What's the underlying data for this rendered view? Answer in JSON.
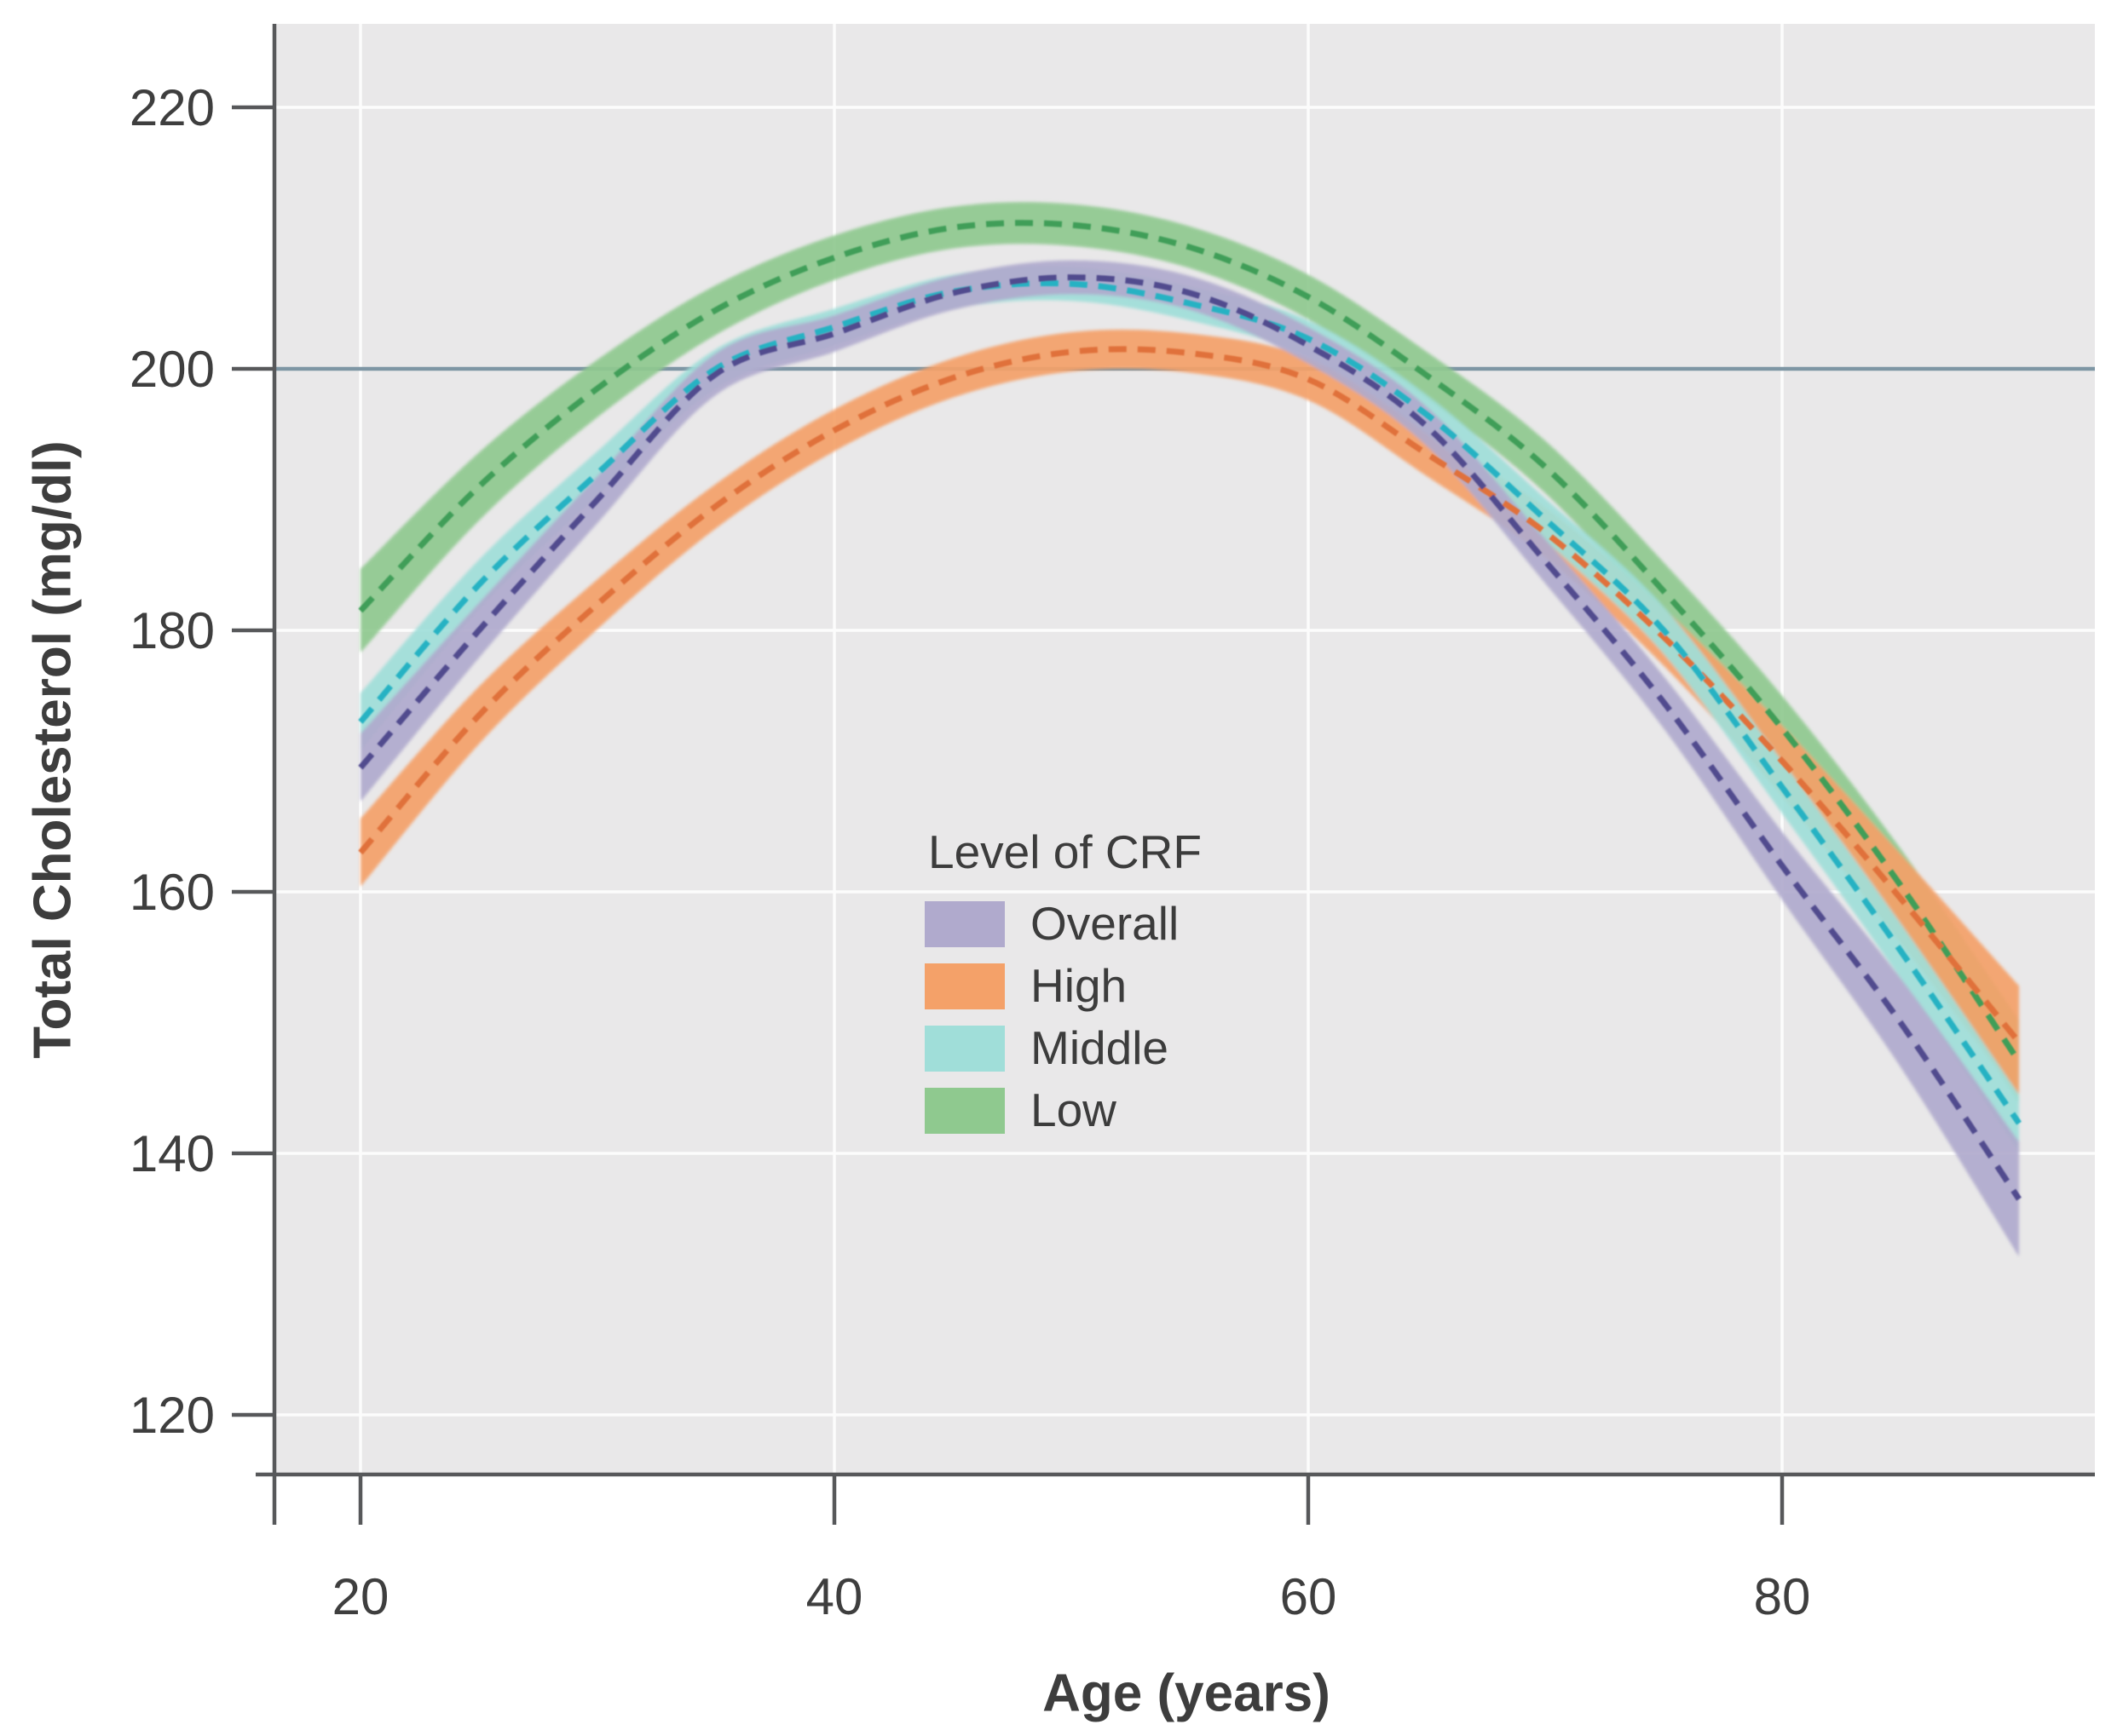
{
  "chart_data": {
    "type": "line",
    "title": "",
    "xlabel": "Age (years)",
    "ylabel": "Total Cholesterol (mg/dl)",
    "x": {
      "min": 20,
      "max": 90,
      "ticks": [
        20,
        40,
        60,
        80
      ]
    },
    "y": {
      "min": 115,
      "max": 226,
      "ticks": [
        120,
        140,
        160,
        180,
        200,
        220
      ]
    },
    "grid": true,
    "legend": {
      "title": "Level of CRF",
      "position": "inside-center-bottom",
      "items": [
        "Overall",
        "High",
        "Middle",
        "Low"
      ]
    },
    "reference_line": {
      "value": 200,
      "color": "#7e96a4"
    },
    "ages": [
      20,
      25,
      30,
      35,
      40,
      45,
      50,
      55,
      60,
      65,
      70,
      75,
      80,
      85,
      90
    ],
    "series": [
      {
        "name": "Overall",
        "band_color": "#b0aacd",
        "line_color": "#514b8e",
        "line_style": "dashed",
        "values": [
          169.5,
          180.0,
          190.0,
          199.6,
          202.7,
          205.8,
          207.0,
          205.8,
          201.8,
          195.6,
          185.3,
          174.5,
          162.0,
          150.0,
          136.5
        ],
        "band_halfwidth": [
          2.6,
          2.1,
          1.8,
          1.6,
          1.4,
          1.3,
          1.3,
          1.3,
          1.4,
          1.5,
          1.7,
          2.0,
          2.6,
          3.4,
          4.4
        ]
      },
      {
        "name": "High",
        "band_color": "#f4a169",
        "line_color": "#e0713b",
        "line_style": "dashed",
        "values": [
          163.0,
          173.5,
          182.0,
          189.5,
          195.3,
          199.3,
          201.3,
          201.2,
          199.2,
          193.5,
          187.5,
          179.5,
          170.0,
          159.5,
          148.5
        ],
        "band_halfwidth": [
          2.6,
          2.2,
          1.9,
          1.7,
          1.6,
          1.5,
          1.5,
          1.5,
          1.6,
          1.7,
          1.9,
          2.2,
          2.7,
          3.4,
          4.3
        ]
      },
      {
        "name": "Middle",
        "band_color": "#a0ded9",
        "line_color": "#25b2c3",
        "line_style": "dashed",
        "values": [
          173.0,
          183.5,
          192.0,
          200.0,
          203.2,
          205.9,
          206.5,
          205.0,
          202.3,
          196.5,
          188.5,
          180.0,
          168.0,
          155.5,
          142.3
        ],
        "band_halfwidth": [
          2.2,
          1.9,
          1.7,
          1.5,
          1.4,
          1.3,
          1.3,
          1.3,
          1.4,
          1.5,
          1.6,
          1.8,
          2.0,
          2.1,
          2.2
        ]
      },
      {
        "name": "Low",
        "band_color": "#8fc98f",
        "line_color": "#3f9e58",
        "line_style": "dashed",
        "values": [
          181.5,
          191.0,
          198.5,
          204.5,
          208.5,
          210.8,
          211.0,
          209.3,
          205.5,
          199.5,
          192.5,
          183.0,
          172.5,
          160.5,
          147.0
        ],
        "band_halfwidth": [
          3.2,
          2.6,
          2.2,
          1.9,
          1.7,
          1.6,
          1.6,
          1.6,
          1.7,
          1.8,
          2.0,
          2.2,
          2.5,
          2.8,
          3.2
        ]
      }
    ],
    "colors": {
      "plot_background": "#e9e8e9",
      "gridline": "#fcfcfc",
      "axis": "#57585a",
      "tick_label": "#3e3e3e"
    }
  }
}
